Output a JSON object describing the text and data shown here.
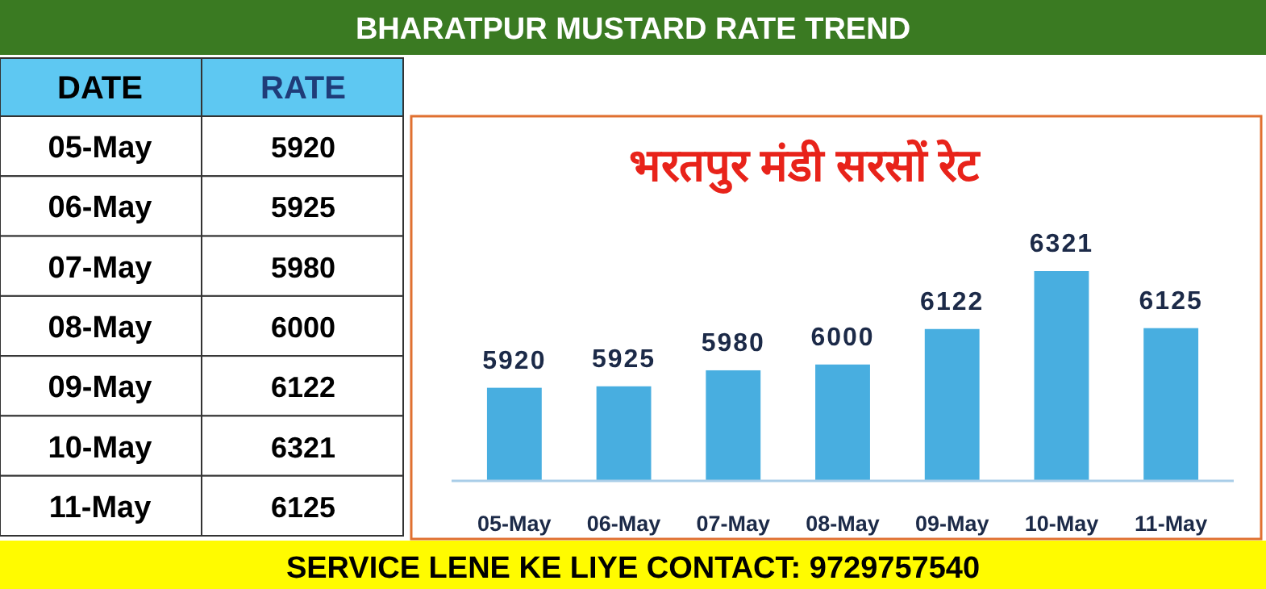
{
  "chart_data": [
    {
      "type": "other",
      "annotations": [
        "DATE",
        "RATE"
      ],
      "data_labels": true,
      "categories": [
        "05-May",
        "06-May",
        "07-May",
        "08-May",
        "09-May",
        "10-May",
        "11-May"
      ],
      "values": [
        5920,
        5925,
        5980,
        6000,
        6122,
        6321,
        6125
      ]
    },
    {
      "type": "bar",
      "title": "BHARATPUR MUSTARD RATE TREND",
      "subtitle": "भरतपुर मंडी सरसों रेट",
      "categories": [
        "05-May",
        "06-May",
        "07-May",
        "08-May",
        "09-May",
        "10-May",
        "11-May"
      ],
      "values": [
        5920,
        5925,
        5980,
        6000,
        6122,
        6321,
        6125
      ],
      "color": "#48aee0",
      "ylim": [
        5600,
        6321
      ],
      "data_labels": true,
      "annotations": [
        "SERVICE LENE KE LIYE CONTACT: 9729757540"
      ]
    }
  ]
}
